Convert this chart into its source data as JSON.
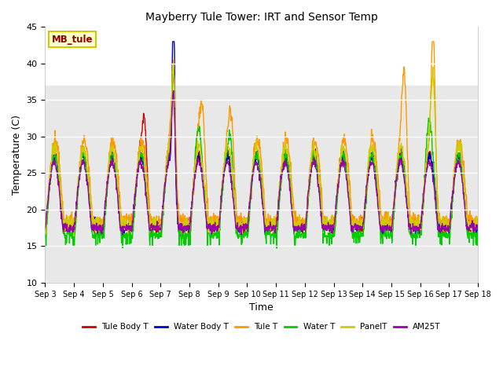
{
  "title": "Mayberry Tule Tower: IRT and Sensor Temp",
  "xlabel": "Time",
  "ylabel": "Temperature (C)",
  "ylim": [
    10,
    45
  ],
  "xlim": [
    0,
    15
  ],
  "xtick_labels": [
    "Sep 3",
    "Sep 4",
    "Sep 5",
    "Sep 6",
    "Sep 7",
    "Sep 8",
    "Sep 9",
    "Sep 10",
    "Sep 11",
    "Sep 12",
    "Sep 13",
    "Sep 14",
    "Sep 15",
    "Sep 16",
    "Sep 17",
    "Sep 18"
  ],
  "shaded_region_gray": [
    10,
    37
  ],
  "shaded_color_gray": "#e8e8e8",
  "background_color": "#ffffff",
  "legend_label": "MB_tule",
  "legend_box_color": "#ffffcc",
  "legend_box_edge": "#cccc00",
  "series": {
    "Tule Body T": {
      "color": "#cc0000",
      "lw": 1.0
    },
    "Water Body T": {
      "color": "#0000cc",
      "lw": 1.0
    },
    "Tule T": {
      "color": "#ff9900",
      "lw": 1.0
    },
    "Water T": {
      "color": "#00cc00",
      "lw": 1.0
    },
    "PanelT": {
      "color": "#cccc00",
      "lw": 1.0
    },
    "AM25T": {
      "color": "#9900aa",
      "lw": 1.0
    }
  },
  "figsize": [
    6.4,
    4.8
  ],
  "dpi": 100
}
